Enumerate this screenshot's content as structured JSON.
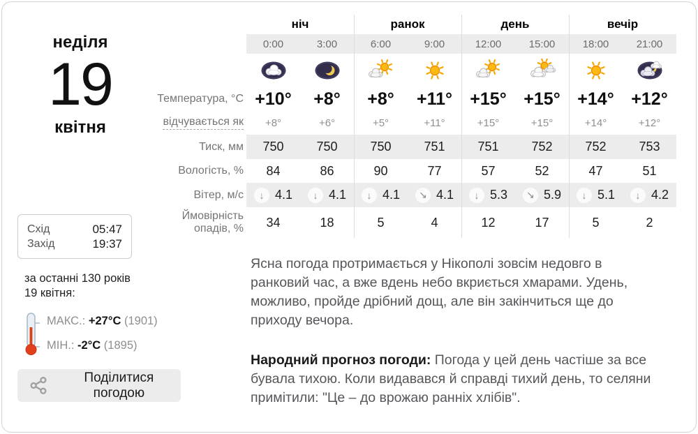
{
  "date": {
    "weekday": "неділя",
    "day": "19",
    "month": "квітня"
  },
  "table": {
    "periods": [
      {
        "label": "ніч"
      },
      {
        "label": "ранок"
      },
      {
        "label": "день"
      },
      {
        "label": "вечір"
      }
    ],
    "row_labels": {
      "temperature": "Температура, °C",
      "feels_like": "відчувається як",
      "pressure": "Тиск, мм",
      "humidity": "Вологість, %",
      "wind": "Вітер, м/с",
      "precipitation": "Ймовірність опадів, %"
    },
    "columns": [
      {
        "time": "0:00",
        "icon": "night-cloud",
        "temp": "+10°",
        "feels": "+8°",
        "pressure": "750",
        "humidity": "84",
        "wind_dir": "down",
        "wind_speed": "4.1",
        "precip": "34"
      },
      {
        "time": "3:00",
        "icon": "night-moon",
        "temp": "+8°",
        "feels": "+6°",
        "pressure": "750",
        "humidity": "86",
        "wind_dir": "down",
        "wind_speed": "4.1",
        "precip": "18"
      },
      {
        "time": "6:00",
        "icon": "sun-cloud",
        "temp": "+8°",
        "feels": "+5°",
        "pressure": "750",
        "humidity": "90",
        "wind_dir": "down",
        "wind_speed": "4.1",
        "precip": "5"
      },
      {
        "time": "9:00",
        "icon": "sun",
        "temp": "+11°",
        "feels": "+11°",
        "pressure": "751",
        "humidity": "77",
        "wind_dir": "down-right",
        "wind_speed": "4.1",
        "precip": "4"
      },
      {
        "time": "12:00",
        "icon": "sun-cloud",
        "temp": "+15°",
        "feels": "+15°",
        "pressure": "751",
        "humidity": "57",
        "wind_dir": "down",
        "wind_speed": "5.3",
        "precip": "12"
      },
      {
        "time": "15:00",
        "icon": "sun-clouds",
        "temp": "+15°",
        "feels": "+15°",
        "pressure": "752",
        "humidity": "52",
        "wind_dir": "down-right",
        "wind_speed": "5.9",
        "precip": "17"
      },
      {
        "time": "18:00",
        "icon": "sun",
        "temp": "+14°",
        "feels": "+14°",
        "pressure": "752",
        "humidity": "47",
        "wind_dir": "down",
        "wind_speed": "5.1",
        "precip": "5"
      },
      {
        "time": "21:00",
        "icon": "night-clouds",
        "temp": "+12°",
        "feels": "+12°",
        "pressure": "753",
        "humidity": "51",
        "wind_dir": "down",
        "wind_speed": "4.2",
        "precip": "2"
      }
    ]
  },
  "sun": {
    "rise_label": "Схід",
    "rise_time": "05:47",
    "set_label": "Захід",
    "set_time": "19:37"
  },
  "records": {
    "intro_line1": "за останні 130 років",
    "intro_line2": "19 квітня:",
    "max_label": "МАКС.:",
    "max_value": "+27°C",
    "max_year": "(1901)",
    "min_label": "МІН.:",
    "min_value": "-2°C",
    "min_year": "(1895)"
  },
  "share": {
    "label": "Поділитися погодою"
  },
  "paragraphs": {
    "forecast": "Ясна погода протримається у Нікополі зовсім недовго в ранковий час, а вже вдень небо вкриється хмарами. Удень, можливо, пройде дрібний дощ, але він закінчиться ще до приходу вечора.",
    "folk_lead": "Народний прогноз погоди:",
    "folk_body": " Погода у цей день частіше за все бувала тихою. Коли видавався й справді тихий день, то селяни примітили: \"Це – до врожаю ранніх хлібів\"."
  },
  "colors": {
    "band": "#ececec",
    "accent_sun": "#fdb913",
    "accent_night": "#312d4b",
    "mercury_red": "#e2401c"
  }
}
